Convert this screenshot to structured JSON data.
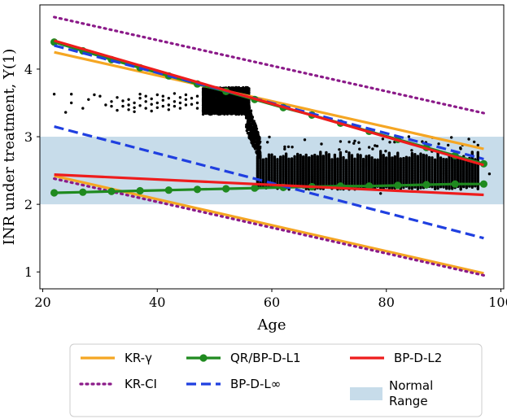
{
  "chart_data": {
    "type": "line",
    "title": "",
    "xlabel": "Age",
    "ylabel": "INR under treatment, Y(1)",
    "xlim": [
      19.5,
      100.5
    ],
    "ylim": [
      0.75,
      4.95
    ],
    "xticks": [
      20,
      40,
      60,
      80,
      100
    ],
    "yticks": [
      1,
      2,
      3,
      4
    ],
    "normal_range": {
      "label": "Normal Range",
      "y_min": 2.0,
      "y_max": 3.0,
      "color": "#c7dcea"
    },
    "series": [
      {
        "name": "KR-γ",
        "color": "#f5a623",
        "style": "solid",
        "segments": [
          {
            "x": [
              22,
              97
            ],
            "y": [
              4.25,
              2.82
            ]
          },
          {
            "x": [
              22,
              97
            ],
            "y": [
              2.42,
              0.98
            ]
          }
        ]
      },
      {
        "name": "KR-CI",
        "color": "#8b1a89",
        "style": "dotted",
        "segments": [
          {
            "x": [
              22,
              97
            ],
            "y": [
              4.77,
              3.35
            ]
          },
          {
            "x": [
              22,
              97
            ],
            "y": [
              2.38,
              0.95
            ]
          }
        ]
      },
      {
        "name": "QR/BP-D-L1",
        "color": "#1f8a1f",
        "style": "solid-markers",
        "segments": [
          {
            "x": [
              22,
              27,
              32,
              37,
              42,
              47,
              52,
              57,
              62,
              67,
              72,
              77,
              82,
              87,
              92,
              97
            ],
            "y": [
              2.17,
              2.18,
              2.19,
              2.2,
              2.21,
              2.22,
              2.23,
              2.24,
              2.25,
              2.26,
              2.27,
              2.27,
              2.28,
              2.29,
              2.3,
              2.3
            ]
          },
          {
            "x": [
              22,
              27,
              32,
              37,
              42,
              47,
              52,
              57,
              62,
              67,
              72,
              77,
              82,
              87,
              92,
              97
            ],
            "y": [
              4.4,
              4.27,
              4.14,
              4.02,
              3.9,
              3.78,
              3.67,
              3.55,
              3.43,
              3.32,
              3.2,
              3.08,
              2.96,
              2.84,
              2.72,
              2.6
            ]
          }
        ]
      },
      {
        "name": "BP-D-L∞",
        "color": "#1f3fe0",
        "style": "dashed",
        "segments": [
          {
            "x": [
              22,
              97
            ],
            "y": [
              4.35,
              2.67
            ]
          },
          {
            "x": [
              22,
              97
            ],
            "y": [
              3.15,
              1.5
            ]
          }
        ]
      },
      {
        "name": "BP-D-L2",
        "color": "#ee1c1c",
        "style": "solid",
        "segments": [
          {
            "x": [
              22,
              97
            ],
            "y": [
              4.42,
              2.58
            ]
          },
          {
            "x": [
              22,
              97
            ],
            "y": [
              2.44,
              2.14
            ]
          }
        ]
      }
    ],
    "scatter": {
      "color": "#000000",
      "points": [
        [
          22,
          3.63
        ],
        [
          24,
          3.36
        ],
        [
          25,
          3.5
        ],
        [
          25,
          3.63
        ],
        [
          27,
          3.42
        ],
        [
          28,
          3.55
        ],
        [
          29,
          3.62
        ],
        [
          30,
          3.6
        ],
        [
          31,
          3.47
        ],
        [
          32,
          3.45
        ],
        [
          32,
          3.52
        ],
        [
          33,
          3.39
        ],
        [
          33,
          3.58
        ],
        [
          34,
          3.45
        ],
        [
          34,
          3.53
        ],
        [
          35,
          3.4
        ],
        [
          35,
          3.47
        ],
        [
          35,
          3.55
        ],
        [
          36,
          3.37
        ],
        [
          36,
          3.43
        ],
        [
          36,
          3.5
        ],
        [
          37,
          3.46
        ],
        [
          37,
          3.57
        ],
        [
          37,
          3.63
        ],
        [
          38,
          3.42
        ],
        [
          38,
          3.52
        ],
        [
          38,
          3.6
        ],
        [
          39,
          3.38
        ],
        [
          39,
          3.48
        ],
        [
          39,
          3.56
        ],
        [
          40,
          3.43
        ],
        [
          40,
          3.5
        ],
        [
          40,
          3.62
        ],
        [
          41,
          3.45
        ],
        [
          41,
          3.54
        ],
        [
          41,
          3.6
        ],
        [
          42,
          3.4
        ],
        [
          42,
          3.47
        ],
        [
          42,
          3.57
        ],
        [
          43,
          3.45
        ],
        [
          43,
          3.52
        ],
        [
          43,
          3.64
        ],
        [
          44,
          3.42
        ],
        [
          44,
          3.5
        ],
        [
          44,
          3.58
        ],
        [
          45,
          3.47
        ],
        [
          45,
          3.55
        ],
        [
          45,
          3.62
        ],
        [
          46,
          3.48
        ],
        [
          46,
          3.57
        ],
        [
          47,
          3.42
        ],
        [
          47,
          3.5
        ],
        [
          47,
          3.6
        ],
        [
          48,
          3.38
        ],
        [
          48,
          3.46
        ],
        [
          48,
          3.55
        ],
        [
          48,
          3.66
        ]
      ]
    },
    "legend": {
      "placement": "bottom-center",
      "entries": [
        "KR-γ",
        "QR/BP-D-L1",
        "BP-D-L2",
        "KR-CI",
        "BP-D-L∞",
        "Normal Range"
      ]
    }
  }
}
